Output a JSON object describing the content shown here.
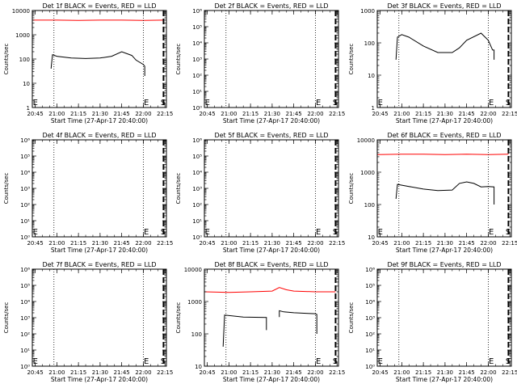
{
  "chart_data": [
    {
      "type": "line",
      "title": "Det 1f BLACK = Events, RED = LLD",
      "xlabel": "Start Time (27-Apr-17 20:40:00)",
      "ylabel": "Counts/sec",
      "yscale": "log",
      "ylim": [
        1,
        10000
      ],
      "y_ticks": [
        1,
        10,
        100,
        1000,
        10000
      ],
      "y_tick_labels": [
        "1",
        "10",
        "100",
        "1000",
        "10000"
      ],
      "xlim": [
        "20:43",
        "22:16"
      ],
      "x_ticks": [
        "20:45",
        "21:00",
        "21:15",
        "21:30",
        "21:45",
        "22:00",
        "22:15"
      ],
      "dotted_lines": [
        "20:58",
        "22:00"
      ],
      "dashed_lines": [
        "22:14"
      ],
      "markers": [
        {
          "text": "E",
          "x": "20:44"
        },
        {
          "text": "E",
          "x": "22:01"
        },
        {
          "text": "S",
          "x": "22:15"
        }
      ],
      "series": [
        {
          "color": "#ff0000",
          "x": [
            "20:43",
            "21:00",
            "21:15",
            "21:30",
            "21:45",
            "22:00",
            "22:14"
          ],
          "values": [
            4000,
            4000,
            3900,
            4000,
            4000,
            3900,
            4000
          ]
        },
        {
          "color": "#000000",
          "x": [
            "20:56",
            "20:57",
            "21:00",
            "21:10",
            "21:20",
            "21:30",
            "21:38",
            "21:45",
            "21:52",
            "21:55",
            "22:00",
            "22:01",
            "22:01"
          ],
          "values": [
            40,
            150,
            130,
            110,
            105,
            110,
            130,
            200,
            140,
            90,
            60,
            50,
            20
          ]
        }
      ]
    },
    {
      "type": "line",
      "title": "Det 2f BLACK = Events, RED = LLD",
      "xlabel": "Start Time (27-Apr-17 20:40:00)",
      "ylabel": "Counts/sec",
      "yscale": "log",
      "ylim": [
        1,
        1000000
      ],
      "y_ticks": [
        1,
        10,
        100,
        1000,
        10000,
        100000,
        1000000
      ],
      "y_tick_labels": [
        "10⁰",
        "10¹",
        "10²",
        "10³",
        "10⁴",
        "10⁵",
        "10⁶"
      ],
      "xlim": [
        "20:43",
        "22:16"
      ],
      "x_ticks": [
        "20:45",
        "21:00",
        "21:15",
        "21:30",
        "21:45",
        "22:00",
        "22:15"
      ],
      "dotted_lines": [
        "20:58",
        "22:00"
      ],
      "dashed_lines": [
        "22:14"
      ],
      "markers": [
        {
          "text": "E",
          "x": "20:44"
        },
        {
          "text": "E",
          "x": "22:01"
        },
        {
          "text": "S",
          "x": "22:15"
        }
      ],
      "series": []
    },
    {
      "type": "line",
      "title": "Det 3f BLACK = Events, RED = LLD",
      "xlabel": "Start Time (27-Apr-17 20:40:00)",
      "ylabel": "Counts/sec",
      "yscale": "log",
      "ylim": [
        1,
        1000
      ],
      "y_ticks": [
        1,
        10,
        100,
        1000
      ],
      "y_tick_labels": [
        "1",
        "10",
        "100",
        "1000"
      ],
      "xlim": [
        "20:43",
        "22:16"
      ],
      "x_ticks": [
        "20:45",
        "21:00",
        "21:15",
        "21:30",
        "21:45",
        "22:00",
        "22:15"
      ],
      "dotted_lines": [
        "20:58",
        "22:00"
      ],
      "dashed_lines": [
        "22:14"
      ],
      "markers": [
        {
          "text": "E",
          "x": "20:44"
        },
        {
          "text": "E",
          "x": "22:01"
        },
        {
          "text": "S",
          "x": "22:15"
        }
      ],
      "series": [
        {
          "color": "#000000",
          "x": [
            "20:56",
            "20:57",
            "21:00",
            "21:05",
            "21:15",
            "21:25",
            "21:35",
            "21:40",
            "21:45",
            "21:55",
            "22:00",
            "22:03",
            "22:04",
            "22:04"
          ],
          "values": [
            30,
            150,
            180,
            150,
            80,
            50,
            50,
            70,
            120,
            200,
            120,
            60,
            60,
            30
          ]
        }
      ]
    },
    {
      "type": "line",
      "title": "Det 4f BLACK = Events, RED = LLD",
      "xlabel": "Start Time (27-Apr-17 20:40:00)",
      "ylabel": "Counts/sec",
      "yscale": "log",
      "ylim": [
        1,
        1000000
      ],
      "y_ticks": [
        1,
        10,
        100,
        1000,
        10000,
        100000,
        1000000
      ],
      "y_tick_labels": [
        "10⁰",
        "10¹",
        "10²",
        "10³",
        "10⁴",
        "10⁵",
        "10⁶"
      ],
      "xlim": [
        "20:43",
        "22:16"
      ],
      "x_ticks": [
        "20:45",
        "21:00",
        "21:15",
        "21:30",
        "21:45",
        "22:00",
        "22:15"
      ],
      "dotted_lines": [
        "20:58",
        "22:00"
      ],
      "dashed_lines": [
        "22:14"
      ],
      "markers": [
        {
          "text": "E",
          "x": "20:44"
        },
        {
          "text": "E",
          "x": "22:01"
        },
        {
          "text": "S",
          "x": "22:15"
        }
      ],
      "series": []
    },
    {
      "type": "line",
      "title": "Det 5f BLACK = Events, RED = LLD",
      "xlabel": "Start Time (27-Apr-17 20:40:00)",
      "ylabel": "Counts/sec",
      "yscale": "log",
      "ylim": [
        1,
        1000000
      ],
      "y_ticks": [
        1,
        10,
        100,
        1000,
        10000,
        100000,
        1000000
      ],
      "y_tick_labels": [
        "10⁰",
        "10¹",
        "10²",
        "10³",
        "10⁴",
        "10⁵",
        "10⁶"
      ],
      "xlim": [
        "20:43",
        "22:16"
      ],
      "x_ticks": [
        "20:45",
        "21:00",
        "21:15",
        "21:30",
        "21:45",
        "22:00",
        "22:15"
      ],
      "dotted_lines": [
        "20:58",
        "22:00"
      ],
      "dashed_lines": [
        "22:14"
      ],
      "markers": [
        {
          "text": "E",
          "x": "20:44"
        },
        {
          "text": "E",
          "x": "22:01"
        },
        {
          "text": "S",
          "x": "22:15"
        }
      ],
      "series": []
    },
    {
      "type": "line",
      "title": "Det 6f BLACK = Events, RED = LLD",
      "xlabel": "Start Time (27-Apr-17 20:40:00)",
      "ylabel": "Counts/sec",
      "yscale": "log",
      "ylim": [
        10,
        10000
      ],
      "y_ticks": [
        10,
        100,
        1000,
        10000
      ],
      "y_tick_labels": [
        "10",
        "100",
        "1000",
        "10000"
      ],
      "xlim": [
        "20:43",
        "22:16"
      ],
      "x_ticks": [
        "20:45",
        "21:00",
        "21:15",
        "21:30",
        "21:45",
        "22:00",
        "22:15"
      ],
      "dotted_lines": [
        "20:58",
        "22:00"
      ],
      "dashed_lines": [
        "22:14"
      ],
      "markers": [
        {
          "text": "E",
          "x": "20:44"
        },
        {
          "text": "E",
          "x": "22:01"
        },
        {
          "text": "S",
          "x": "22:15"
        }
      ],
      "series": [
        {
          "color": "#ff0000",
          "x": [
            "20:43",
            "21:00",
            "21:15",
            "21:30",
            "21:45",
            "22:00",
            "22:14"
          ],
          "values": [
            3500,
            3600,
            3600,
            3500,
            3600,
            3500,
            3600
          ]
        },
        {
          "color": "#000000",
          "x": [
            "20:56",
            "20:57",
            "21:05",
            "21:15",
            "21:25",
            "21:35",
            "21:40",
            "21:45",
            "21:50",
            "21:55",
            "22:00",
            "22:04",
            "22:04",
            "22:04"
          ],
          "values": [
            150,
            420,
            360,
            300,
            270,
            280,
            450,
            500,
            450,
            350,
            360,
            350,
            320,
            100
          ]
        }
      ]
    },
    {
      "type": "line",
      "title": "Det 7f BLACK = Events, RED = LLD",
      "xlabel": "Start Time (27-Apr-17 20:40:00)",
      "ylabel": "Counts/sec",
      "yscale": "log",
      "ylim": [
        1,
        1000000
      ],
      "y_ticks": [
        1,
        10,
        100,
        1000,
        10000,
        100000,
        1000000
      ],
      "y_tick_labels": [
        "10⁰",
        "10¹",
        "10²",
        "10³",
        "10⁴",
        "10⁵",
        "10⁶"
      ],
      "xlim": [
        "20:43",
        "22:16"
      ],
      "x_ticks": [
        "20:45",
        "21:00",
        "21:15",
        "21:30",
        "21:45",
        "22:00",
        "22:15"
      ],
      "dotted_lines": [
        "20:58",
        "22:00"
      ],
      "dashed_lines": [
        "22:14"
      ],
      "markers": [
        {
          "text": "E",
          "x": "20:44"
        },
        {
          "text": "E",
          "x": "22:01"
        },
        {
          "text": "S",
          "x": "22:15"
        }
      ],
      "series": []
    },
    {
      "type": "line",
      "title": "Det 8f BLACK = Events, RED = LLD",
      "xlabel": "Start Time (27-Apr-17 20:40:00)",
      "ylabel": "Counts/sec",
      "yscale": "log",
      "ylim": [
        10,
        10000
      ],
      "y_ticks": [
        10,
        100,
        1000,
        10000
      ],
      "y_tick_labels": [
        "10",
        "100",
        "1000",
        "10000"
      ],
      "xlim": [
        "20:43",
        "22:16"
      ],
      "x_ticks": [
        "20:45",
        "21:00",
        "21:15",
        "21:30",
        "21:45",
        "22:00",
        "22:15"
      ],
      "dotted_lines": [
        "20:58",
        "22:00"
      ],
      "dashed_lines": [
        "22:14"
      ],
      "markers": [
        {
          "text": "E",
          "x": "22:01"
        },
        {
          "text": "S",
          "x": "22:15"
        }
      ],
      "series": [
        {
          "color": "#ff0000",
          "x": [
            "20:43",
            "21:00",
            "21:15",
            "21:30",
            "21:35",
            "21:40",
            "21:45",
            "22:00",
            "22:14"
          ],
          "values": [
            2000,
            1900,
            2000,
            2100,
            2700,
            2300,
            2100,
            2000,
            2000
          ]
        },
        {
          "color": "#000000",
          "x": [
            "20:56",
            "20:57",
            "21:10",
            "21:26",
            "21:26"
          ],
          "values": [
            40,
            380,
            330,
            320,
            130
          ]
        },
        {
          "color": "#000000",
          "x": [
            "21:35",
            "21:35",
            "21:38",
            "21:45",
            "21:55",
            "22:00",
            "22:01",
            "22:01"
          ],
          "values": [
            330,
            520,
            480,
            450,
            430,
            420,
            400,
            100
          ]
        }
      ]
    },
    {
      "type": "line",
      "title": "Det 9f BLACK = Events, RED = LLD",
      "xlabel": "Start Time (27-Apr-17 20:40:00)",
      "ylabel": "Counts/sec",
      "yscale": "log",
      "ylim": [
        1,
        1000000
      ],
      "y_ticks": [
        1,
        10,
        100,
        1000,
        10000,
        100000,
        1000000
      ],
      "y_tick_labels": [
        "10⁰",
        "10¹",
        "10²",
        "10³",
        "10⁴",
        "10⁵",
        "10⁶"
      ],
      "xlim": [
        "20:43",
        "22:16"
      ],
      "x_ticks": [
        "20:45",
        "21:00",
        "21:15",
        "21:30",
        "21:45",
        "22:00",
        "22:15"
      ],
      "dotted_lines": [
        "20:58",
        "22:00"
      ],
      "dashed_lines": [
        "22:14"
      ],
      "markers": [
        {
          "text": "E",
          "x": "20:44"
        },
        {
          "text": "E",
          "x": "22:01"
        },
        {
          "text": "S",
          "x": "22:15"
        }
      ],
      "series": []
    }
  ]
}
